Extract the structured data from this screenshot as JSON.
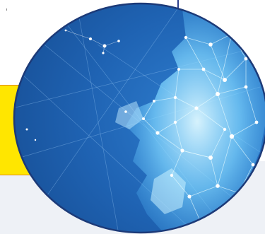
{
  "illustration": {
    "icon": "network-globe-icon",
    "colors": {
      "outline": "#1c3a78",
      "deep_blue": "#1a5aa3",
      "mid_blue": "#2f7fd0",
      "glow": "#9ee8ff",
      "node": "#ffffff"
    }
  },
  "colors": {
    "accent_yellow": "#ffe600",
    "accent_orange": "#e08a00",
    "panel_background": "#eef1f6",
    "divider": "#2b3f8c"
  }
}
